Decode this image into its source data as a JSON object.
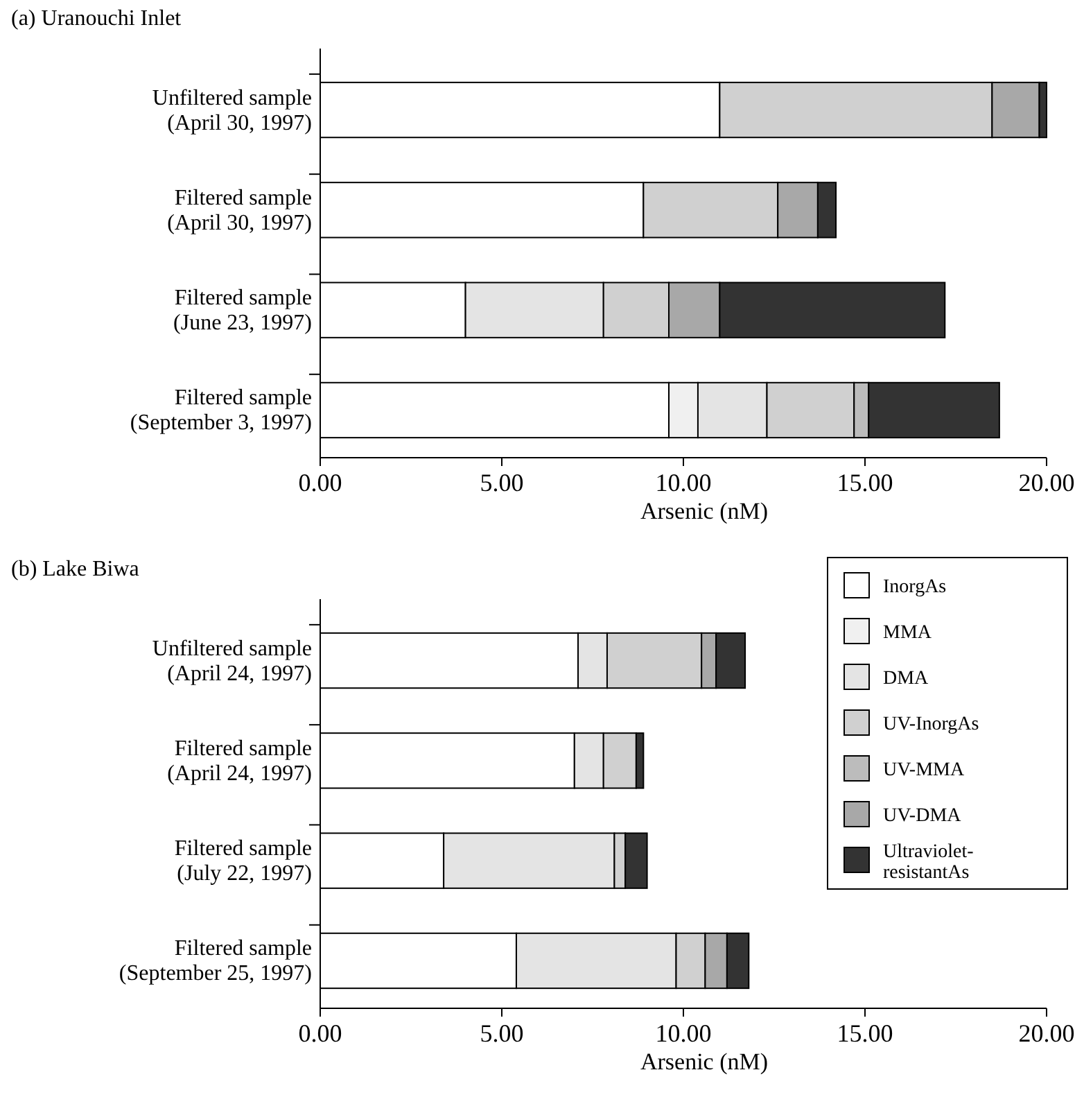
{
  "chart_data": [
    {
      "type": "bar",
      "orientation": "horizontal",
      "stacked": true,
      "title": "(a) Uranouchi Inlet",
      "xlabel": "Arsenic (nM)",
      "categories": [
        "Unfiltered sample\n(April 30, 1997)",
        "Filtered sample\n(April 30, 1997)",
        "Filtered sample\n(June 23, 1997)",
        "Filtered sample\n(September 3, 1997)"
      ],
      "xlim": [
        0,
        20
      ],
      "xticks": [
        {
          "value": 0,
          "label": "0.00"
        },
        {
          "value": 5,
          "label": "5.00"
        },
        {
          "value": 10,
          "label": "10.00"
        },
        {
          "value": 15,
          "label": "15.00"
        },
        {
          "value": 20,
          "label": "20.00"
        }
      ],
      "grid": false,
      "legend": false,
      "series": [
        {
          "color": "#ffffff",
          "values": [
            11.0,
            8.9,
            4.0,
            9.6
          ]
        },
        {
          "color": "#f0f0f0",
          "values": [
            0,
            0,
            0,
            0.8
          ]
        },
        {
          "color": "#e4e4e4",
          "values": [
            0,
            0,
            3.8,
            1.9
          ]
        },
        {
          "color": "#d0d0d0",
          "values": [
            7.5,
            3.7,
            1.8,
            2.4
          ]
        },
        {
          "color": "#bcbcbc",
          "values": [
            0,
            0,
            0,
            0.4
          ]
        },
        {
          "color": "#a8a8a8",
          "values": [
            1.3,
            1.1,
            1.4,
            0
          ]
        },
        {
          "color": "#333333",
          "values": [
            0.2,
            0.5,
            6.2,
            3.6
          ]
        }
      ]
    },
    {
      "type": "bar",
      "orientation": "horizontal",
      "stacked": true,
      "title": "(b) Lake Biwa",
      "xlabel": "Arsenic (nM)",
      "categories": [
        "Unfiltered sample\n(April 24, 1997)",
        "Filtered sample\n(April 24, 1997)",
        "Filtered sample\n(July 22, 1997)",
        "Filtered sample\n(September 25, 1997)"
      ],
      "xlim": [
        0,
        20
      ],
      "xticks": [
        {
          "value": 0,
          "label": "0.00"
        },
        {
          "value": 5,
          "label": "5.00"
        },
        {
          "value": 10,
          "label": "10.00"
        },
        {
          "value": 15,
          "label": "15.00"
        },
        {
          "value": 20,
          "label": "20.00"
        }
      ],
      "grid": false,
      "legend": "top right",
      "series": [
        {
          "name": "InorgAs",
          "color": "#ffffff",
          "values": [
            7.1,
            7.0,
            3.4,
            5.4
          ]
        },
        {
          "name": "MMA",
          "color": "#f0f0f0",
          "values": [
            0,
            0,
            0,
            0
          ]
        },
        {
          "name": "DMA",
          "color": "#e4e4e4",
          "values": [
            0.8,
            0.8,
            4.7,
            4.4
          ]
        },
        {
          "name": "UV-InorgAs",
          "color": "#d0d0d0",
          "values": [
            2.6,
            0.9,
            0.3,
            0.8
          ]
        },
        {
          "name": "UV-MMA",
          "color": "#bcbcbc",
          "values": [
            0,
            0,
            0,
            0
          ]
        },
        {
          "name": "UV-DMA",
          "color": "#a8a8a8",
          "values": [
            0.4,
            0,
            0,
            0.6
          ]
        },
        {
          "name": "Ultraviolet-resistantAs",
          "color": "#333333",
          "values": [
            0.8,
            0.2,
            0.6,
            0.6
          ]
        }
      ]
    }
  ]
}
